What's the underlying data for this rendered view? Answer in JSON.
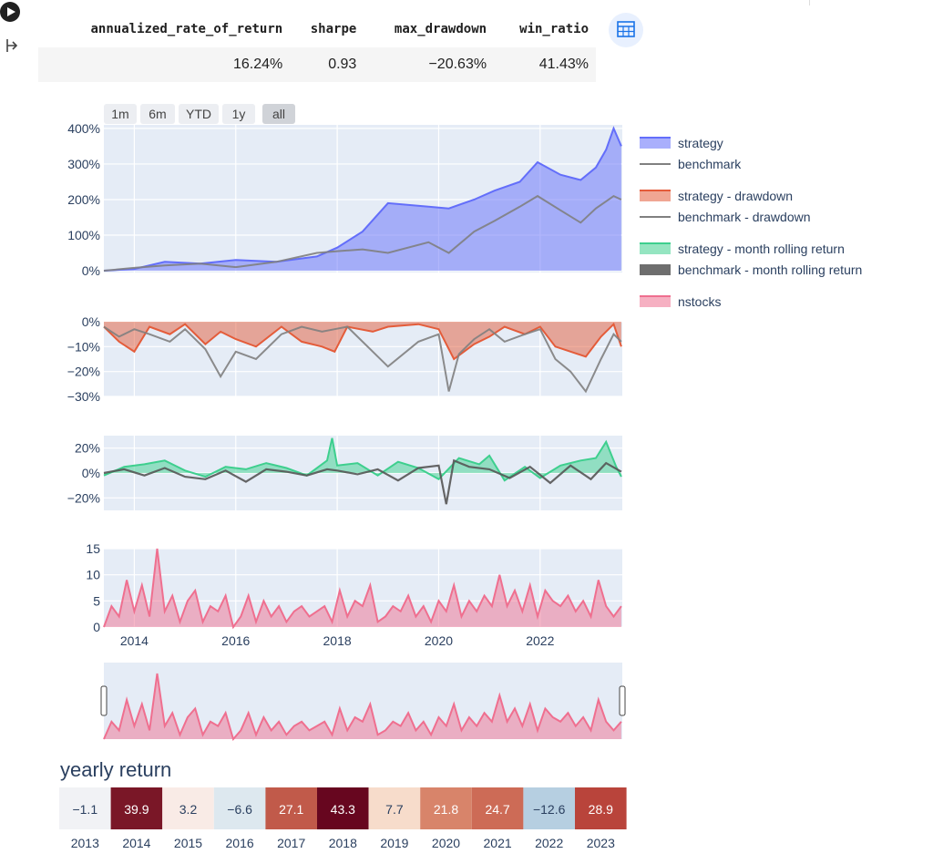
{
  "table": {
    "headers": [
      "annualized_rate_of_return",
      "sharpe",
      "max_drawdown",
      "win_ratio"
    ],
    "values": [
      "16.24%",
      "0.93",
      "−20.63%",
      "41.43%"
    ]
  },
  "range_buttons": [
    "1m",
    "6m",
    "YTD",
    "1y",
    "all"
  ],
  "legend": [
    {
      "label": "strategy",
      "color": "#636efa",
      "kind": "area"
    },
    {
      "label": "benchmark",
      "color": "#808080",
      "kind": "line"
    },
    {
      "label": "strategy - drawdown",
      "color": "#e45c3a",
      "kind": "area"
    },
    {
      "label": "benchmark - drawdown",
      "color": "#808080",
      "kind": "line"
    },
    {
      "label": "strategy - month rolling return",
      "color": "#3ecf8e",
      "kind": "area"
    },
    {
      "label": "benchmark - month rolling return",
      "color": "#555555",
      "kind": "thick"
    },
    {
      "label": "nstocks",
      "color": "#ef6f8f",
      "kind": "area"
    }
  ],
  "chart_data": [
    {
      "type": "area",
      "panel": "cumulative return",
      "y_ticks": [
        "0%",
        "100%",
        "200%",
        "300%",
        "400%"
      ],
      "ylim": [
        -0.05,
        4.1
      ],
      "x_ticks": [
        "2014",
        "2016",
        "2018",
        "2020",
        "2022"
      ],
      "series": [
        {
          "name": "strategy",
          "x": [
            2013.4,
            2014.0,
            2014.6,
            2015.3,
            2016.0,
            2016.8,
            2017.6,
            2018.0,
            2018.5,
            2019.0,
            2019.8,
            2020.2,
            2020.7,
            2021.1,
            2021.6,
            2021.95,
            2022.4,
            2022.8,
            2023.1,
            2023.3,
            2023.45,
            2023.6
          ],
          "y": [
            0.0,
            0.05,
            0.25,
            0.2,
            0.3,
            0.25,
            0.4,
            0.65,
            1.1,
            1.9,
            1.8,
            1.75,
            2.0,
            2.25,
            2.5,
            3.05,
            2.7,
            2.55,
            2.9,
            3.4,
            4.0,
            3.5
          ]
        },
        {
          "name": "benchmark",
          "x": [
            2013.4,
            2014.0,
            2014.6,
            2015.3,
            2016.0,
            2016.8,
            2017.6,
            2018.0,
            2018.5,
            2019.0,
            2019.8,
            2020.2,
            2020.7,
            2021.1,
            2021.6,
            2021.95,
            2022.4,
            2022.8,
            2023.1,
            2023.3,
            2023.45,
            2023.6
          ],
          "y": [
            0.0,
            0.08,
            0.15,
            0.2,
            0.1,
            0.25,
            0.5,
            0.55,
            0.6,
            0.5,
            0.8,
            0.5,
            1.1,
            1.4,
            1.8,
            2.1,
            1.7,
            1.35,
            1.75,
            1.95,
            2.1,
            2.0
          ]
        }
      ]
    },
    {
      "type": "area",
      "panel": "drawdown",
      "y_ticks": [
        "0%",
        "−10%",
        "−20%",
        "−30%"
      ],
      "ylim": [
        -0.3,
        0.0
      ],
      "series": [
        {
          "name": "strategy - drawdown",
          "x": [
            2013.4,
            2013.7,
            2014.0,
            2014.3,
            2014.7,
            2015.0,
            2015.4,
            2015.7,
            2016.0,
            2016.4,
            2016.9,
            2017.3,
            2017.7,
            2017.95,
            2018.2,
            2018.7,
            2019.0,
            2019.6,
            2020.0,
            2020.3,
            2020.7,
            2021.0,
            2021.3,
            2021.7,
            2022.0,
            2022.3,
            2022.6,
            2022.9,
            2023.2,
            2023.45,
            2023.6
          ],
          "y": [
            -0.02,
            -0.08,
            -0.12,
            -0.02,
            -0.05,
            -0.01,
            -0.09,
            -0.04,
            -0.07,
            -0.1,
            -0.02,
            -0.08,
            -0.1,
            -0.12,
            -0.02,
            -0.04,
            -0.02,
            -0.01,
            -0.03,
            -0.15,
            -0.09,
            -0.06,
            -0.02,
            -0.05,
            -0.02,
            -0.1,
            -0.12,
            -0.14,
            -0.06,
            -0.01,
            -0.1
          ]
        },
        {
          "name": "benchmark - drawdown",
          "x": [
            2013.4,
            2013.7,
            2014.0,
            2014.3,
            2014.7,
            2015.0,
            2015.4,
            2015.7,
            2016.0,
            2016.4,
            2016.9,
            2017.3,
            2017.7,
            2017.95,
            2018.2,
            2018.7,
            2019.0,
            2019.6,
            2020.0,
            2020.2,
            2020.4,
            2020.7,
            2021.0,
            2021.3,
            2021.7,
            2022.0,
            2022.3,
            2022.6,
            2022.9,
            2023.2,
            2023.45,
            2023.6
          ],
          "y": [
            -0.02,
            -0.06,
            -0.03,
            -0.05,
            -0.08,
            -0.03,
            -0.11,
            -0.22,
            -0.12,
            -0.15,
            -0.05,
            -0.02,
            -0.04,
            -0.03,
            -0.02,
            -0.12,
            -0.18,
            -0.08,
            -0.05,
            -0.28,
            -0.13,
            -0.07,
            -0.03,
            -0.08,
            -0.05,
            -0.03,
            -0.15,
            -0.2,
            -0.28,
            -0.15,
            -0.05,
            -0.08
          ]
        }
      ]
    },
    {
      "type": "area",
      "panel": "month rolling return",
      "y_ticks": [
        "20%",
        "0%",
        "−20%"
      ],
      "ylim": [
        -0.3,
        0.3
      ],
      "series": [
        {
          "name": "strategy - month rolling return",
          "x": [
            2013.4,
            2013.8,
            2014.2,
            2014.6,
            2015.0,
            2015.4,
            2015.8,
            2016.2,
            2016.6,
            2017.0,
            2017.4,
            2017.8,
            2017.9,
            2018.0,
            2018.4,
            2018.8,
            2019.2,
            2019.6,
            2020.0,
            2020.4,
            2020.8,
            2021.0,
            2021.3,
            2021.7,
            2022.0,
            2022.4,
            2022.8,
            2023.1,
            2023.3,
            2023.5,
            2023.6
          ],
          "y": [
            -0.02,
            0.05,
            0.07,
            0.1,
            0.02,
            -0.03,
            0.05,
            0.03,
            0.08,
            0.04,
            -0.02,
            0.1,
            0.28,
            0.06,
            0.08,
            -0.02,
            0.09,
            0.04,
            -0.05,
            0.12,
            0.07,
            0.14,
            -0.06,
            0.05,
            -0.04,
            0.06,
            0.1,
            0.12,
            0.25,
            0.05,
            -0.03
          ]
        },
        {
          "name": "benchmark - month rolling return",
          "x": [
            2013.4,
            2013.8,
            2014.2,
            2014.6,
            2015.0,
            2015.4,
            2015.8,
            2016.2,
            2016.6,
            2017.0,
            2017.4,
            2017.8,
            2018.0,
            2018.4,
            2018.8,
            2019.2,
            2019.6,
            2020.0,
            2020.15,
            2020.3,
            2020.6,
            2021.0,
            2021.4,
            2021.8,
            2022.2,
            2022.6,
            2023.0,
            2023.3,
            2023.6
          ],
          "y": [
            0.0,
            0.03,
            -0.02,
            0.04,
            -0.03,
            -0.05,
            0.02,
            -0.07,
            0.03,
            0.01,
            -0.02,
            0.03,
            0.02,
            -0.01,
            0.03,
            -0.06,
            0.04,
            0.06,
            -0.25,
            0.1,
            0.05,
            0.03,
            -0.04,
            0.05,
            -0.08,
            0.06,
            -0.05,
            0.08,
            0.01
          ]
        }
      ]
    },
    {
      "type": "area",
      "panel": "nstocks",
      "y_ticks": [
        "0",
        "5",
        "10",
        "15"
      ],
      "ylim": [
        0,
        15
      ],
      "series": [
        {
          "name": "nstocks",
          "x": [
            2013.4,
            2013.55,
            2013.7,
            2013.85,
            2014.0,
            2014.15,
            2014.3,
            2014.45,
            2014.6,
            2014.75,
            2014.9,
            2015.05,
            2015.2,
            2015.35,
            2015.5,
            2015.65,
            2015.8,
            2015.95,
            2016.1,
            2016.25,
            2016.4,
            2016.55,
            2016.7,
            2016.85,
            2017.0,
            2017.15,
            2017.3,
            2017.45,
            2017.6,
            2017.75,
            2017.9,
            2018.05,
            2018.2,
            2018.35,
            2018.5,
            2018.65,
            2018.8,
            2018.95,
            2019.1,
            2019.25,
            2019.4,
            2019.55,
            2019.7,
            2019.85,
            2020.0,
            2020.15,
            2020.3,
            2020.45,
            2020.6,
            2020.75,
            2020.9,
            2021.05,
            2021.2,
            2021.35,
            2021.5,
            2021.65,
            2021.8,
            2021.95,
            2022.1,
            2022.25,
            2022.4,
            2022.55,
            2022.7,
            2022.85,
            2023.0,
            2023.15,
            2023.3,
            2023.45,
            2023.6
          ],
          "y": [
            0,
            4,
            2,
            9,
            3,
            8,
            2,
            15,
            3,
            6,
            1,
            5,
            7,
            1,
            4,
            3,
            6,
            0,
            2,
            6,
            1,
            5,
            2,
            4,
            1,
            3,
            4,
            2,
            3,
            4,
            1,
            7,
            2,
            5,
            4,
            8,
            1,
            2,
            4,
            3,
            6,
            2,
            4,
            1,
            5,
            3,
            8,
            2,
            5,
            3,
            6,
            4,
            10,
            4,
            7,
            3,
            8,
            2,
            7,
            5,
            4,
            6,
            3,
            5,
            2,
            9,
            4,
            2,
            4
          ]
        }
      ]
    },
    {
      "type": "heatmap",
      "panel": "yearly return",
      "title": "yearly return",
      "categories": [
        "2013",
        "2014",
        "2015",
        "2016",
        "2017",
        "2018",
        "2019",
        "2020",
        "2021",
        "2022",
        "2023"
      ],
      "values": [
        "−1.1",
        "39.9",
        "3.2",
        "−6.6",
        "27.1",
        "43.3",
        "7.7",
        "21.8",
        "24.7",
        "−12.6",
        "28.9"
      ],
      "colors": [
        "#f1f2f5",
        "#7a1727",
        "#f9ebe6",
        "#dde8ef",
        "#c15a4a",
        "#67061f",
        "#f7dccb",
        "#d8846a",
        "#cd6b56",
        "#b6cfe1",
        "#b9443b"
      ]
    }
  ]
}
